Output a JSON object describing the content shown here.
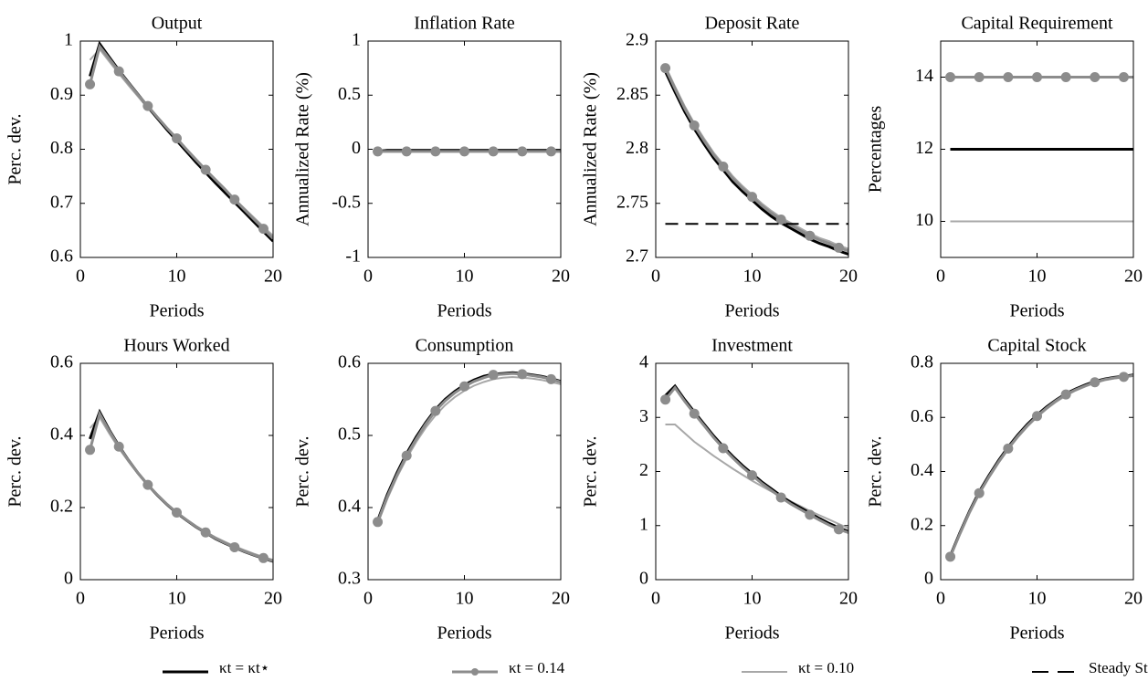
{
  "chart_data": [
    {
      "type": "line",
      "title": "Output",
      "ylabel": "Perc. dev.",
      "xlabel": "Periods",
      "x": [
        1,
        2,
        3,
        4,
        5,
        6,
        7,
        8,
        9,
        10,
        11,
        12,
        13,
        14,
        15,
        16,
        17,
        18,
        19,
        20
      ],
      "xlim": [
        0,
        20
      ],
      "xticks": [
        0,
        10,
        20
      ],
      "ylim": [
        0.6,
        1
      ],
      "yticks": [
        0.6,
        0.7,
        0.8,
        0.9,
        1
      ],
      "series": [
        {
          "values": [
            0.935,
            0.995,
            0.97,
            0.946,
            0.923,
            0.901,
            0.879,
            0.857,
            0.836,
            0.816,
            0.796,
            0.776,
            0.757,
            0.738,
            0.72,
            0.702,
            0.684,
            0.666,
            0.648,
            0.63
          ]
        },
        {
          "values": [
            0.92,
            0.99,
            0.967,
            0.944,
            0.922,
            0.9,
            0.88,
            0.859,
            0.839,
            0.82,
            0.8,
            0.781,
            0.762,
            0.744,
            0.726,
            0.707,
            0.689,
            0.671,
            0.653,
            0.635
          ]
        },
        {
          "values": [
            0.965,
            0.985,
            0.962,
            0.94,
            0.918,
            0.897,
            0.876,
            0.856,
            0.836,
            0.817,
            0.798,
            0.779,
            0.761,
            0.743,
            0.725,
            0.708,
            0.691,
            0.674,
            0.657,
            0.64
          ]
        }
      ]
    },
    {
      "type": "line",
      "title": "Inflation Rate",
      "ylabel": "Annualized Rate (%)",
      "xlabel": "Periods",
      "x": [
        1,
        2,
        3,
        4,
        5,
        6,
        7,
        8,
        9,
        10,
        11,
        12,
        13,
        14,
        15,
        16,
        17,
        18,
        19,
        20
      ],
      "xlim": [
        0,
        20
      ],
      "xticks": [
        0,
        10,
        20
      ],
      "ylim": [
        -1,
        1
      ],
      "yticks": [
        -1,
        -0.5,
        0,
        0.5,
        1
      ],
      "series": [
        {
          "values": [
            -0.02,
            -0.01,
            -0.01,
            -0.01,
            -0.01,
            -0.01,
            -0.01,
            -0.01,
            -0.01,
            -0.01,
            -0.01,
            -0.01,
            -0.01,
            -0.01,
            -0.01,
            -0.01,
            -0.01,
            -0.01,
            -0.01,
            -0.01
          ]
        },
        {
          "values": [
            -0.02,
            -0.02,
            -0.02,
            -0.02,
            -0.02,
            -0.02,
            -0.02,
            -0.02,
            -0.02,
            -0.02,
            -0.02,
            -0.02,
            -0.02,
            -0.02,
            -0.02,
            -0.02,
            -0.02,
            -0.02,
            -0.02,
            -0.02
          ]
        },
        {
          "values": [
            -0.01,
            -0.005,
            -0.005,
            -0.005,
            -0.005,
            -0.005,
            -0.005,
            -0.005,
            -0.005,
            -0.005,
            -0.005,
            -0.005,
            -0.005,
            -0.005,
            -0.005,
            -0.005,
            -0.005,
            -0.005,
            -0.005,
            -0.005
          ]
        }
      ]
    },
    {
      "type": "line",
      "title": "Deposit Rate",
      "ylabel": "Annualized Rate (%)",
      "xlabel": "Periods",
      "x": [
        1,
        2,
        3,
        4,
        5,
        6,
        7,
        8,
        9,
        10,
        11,
        12,
        13,
        14,
        15,
        16,
        17,
        18,
        19,
        20
      ],
      "xlim": [
        0,
        20
      ],
      "xticks": [
        0,
        10,
        20
      ],
      "ylim": [
        2.7,
        2.9
      ],
      "yticks": [
        2.7,
        2.75,
        2.8,
        2.85,
        2.9
      ],
      "series": [
        {
          "values": [
            2.872,
            2.853,
            2.835,
            2.819,
            2.805,
            2.792,
            2.781,
            2.77,
            2.761,
            2.753,
            2.745,
            2.738,
            2.732,
            2.727,
            2.722,
            2.717,
            2.713,
            2.71,
            2.706,
            2.703
          ]
        },
        {
          "values": [
            2.875,
            2.856,
            2.838,
            2.822,
            2.808,
            2.795,
            2.784,
            2.773,
            2.764,
            2.756,
            2.748,
            2.741,
            2.735,
            2.73,
            2.725,
            2.72,
            2.716,
            2.713,
            2.709,
            2.706
          ]
        },
        {
          "values": [
            2.877,
            2.858,
            2.84,
            2.824,
            2.81,
            2.797,
            2.786,
            2.775,
            2.766,
            2.758,
            2.75,
            2.743,
            2.737,
            2.732,
            2.727,
            2.722,
            2.718,
            2.715,
            2.711,
            2.708
          ]
        },
        {
          "values": [
            2.731,
            2.731,
            2.731,
            2.731,
            2.731,
            2.731,
            2.731,
            2.731,
            2.731,
            2.731,
            2.731,
            2.731,
            2.731,
            2.731,
            2.731,
            2.731,
            2.731,
            2.731,
            2.731,
            2.731
          ]
        }
      ]
    },
    {
      "type": "line",
      "title": "Capital Requirement",
      "ylabel": "Percentages",
      "xlabel": "Periods",
      "x": [
        1,
        2,
        3,
        4,
        5,
        6,
        7,
        8,
        9,
        10,
        11,
        12,
        13,
        14,
        15,
        16,
        17,
        18,
        19,
        20
      ],
      "xlim": [
        0,
        20
      ],
      "xticks": [
        0,
        10,
        20
      ],
      "ylim": [
        9,
        15
      ],
      "yticks": [
        10,
        12,
        14
      ],
      "series": [
        {
          "values": [
            12,
            12,
            12,
            12,
            12,
            12,
            12,
            12,
            12,
            12,
            12,
            12,
            12,
            12,
            12,
            12,
            12,
            12,
            12,
            12
          ]
        },
        {
          "values": [
            14,
            14,
            14,
            14,
            14,
            14,
            14,
            14,
            14,
            14,
            14,
            14,
            14,
            14,
            14,
            14,
            14,
            14,
            14,
            14
          ]
        },
        {
          "values": [
            10,
            10,
            10,
            10,
            10,
            10,
            10,
            10,
            10,
            10,
            10,
            10,
            10,
            10,
            10,
            10,
            10,
            10,
            10,
            10
          ]
        }
      ]
    },
    {
      "type": "line",
      "title": "Hours Worked",
      "ylabel": "Perc. dev.",
      "xlabel": "Periods",
      "x": [
        1,
        2,
        3,
        4,
        5,
        6,
        7,
        8,
        9,
        10,
        11,
        12,
        13,
        14,
        15,
        16,
        17,
        18,
        19,
        20
      ],
      "xlim": [
        0,
        20
      ],
      "xticks": [
        0,
        10,
        20
      ],
      "ylim": [
        0,
        0.6
      ],
      "yticks": [
        0,
        0.2,
        0.4,
        0.6
      ],
      "series": [
        {
          "values": [
            0.39,
            0.465,
            0.415,
            0.371,
            0.331,
            0.295,
            0.263,
            0.234,
            0.208,
            0.185,
            0.165,
            0.146,
            0.13,
            0.114,
            0.101,
            0.089,
            0.078,
            0.068,
            0.059,
            0.051
          ]
        },
        {
          "values": [
            0.36,
            0.46,
            0.412,
            0.369,
            0.33,
            0.295,
            0.263,
            0.235,
            0.209,
            0.186,
            0.166,
            0.147,
            0.131,
            0.115,
            0.102,
            0.09,
            0.079,
            0.069,
            0.06,
            0.052
          ]
        },
        {
          "values": [
            0.42,
            0.45,
            0.405,
            0.364,
            0.327,
            0.293,
            0.262,
            0.234,
            0.209,
            0.187,
            0.167,
            0.149,
            0.133,
            0.118,
            0.105,
            0.093,
            0.082,
            0.072,
            0.063,
            0.055
          ]
        }
      ]
    },
    {
      "type": "line",
      "title": "Consumption",
      "ylabel": "Perc. dev.",
      "xlabel": "Periods",
      "x": [
        1,
        2,
        3,
        4,
        5,
        6,
        7,
        8,
        9,
        10,
        11,
        12,
        13,
        14,
        15,
        16,
        17,
        18,
        19,
        20
      ],
      "xlim": [
        0,
        20
      ],
      "xticks": [
        0,
        10,
        20
      ],
      "ylim": [
        0.3,
        0.6
      ],
      "yticks": [
        0.3,
        0.4,
        0.5,
        0.6
      ],
      "series": [
        {
          "values": [
            0.382,
            0.418,
            0.448,
            0.475,
            0.498,
            0.518,
            0.536,
            0.55,
            0.561,
            0.57,
            0.577,
            0.582,
            0.585,
            0.586,
            0.587,
            0.586,
            0.584,
            0.582,
            0.579,
            0.575
          ]
        },
        {
          "values": [
            0.38,
            0.415,
            0.445,
            0.472,
            0.495,
            0.516,
            0.534,
            0.548,
            0.559,
            0.568,
            0.575,
            0.58,
            0.584,
            0.585,
            0.586,
            0.585,
            0.583,
            0.581,
            0.578,
            0.574
          ]
        },
        {
          "values": [
            0.378,
            0.412,
            0.442,
            0.468,
            0.491,
            0.511,
            0.528,
            0.542,
            0.553,
            0.562,
            0.569,
            0.574,
            0.578,
            0.58,
            0.581,
            0.58,
            0.579,
            0.577,
            0.574,
            0.571
          ]
        }
      ]
    },
    {
      "type": "line",
      "title": "Investment",
      "ylabel": "Perc. dev.",
      "xlabel": "Periods",
      "x": [
        1,
        2,
        3,
        4,
        5,
        6,
        7,
        8,
        9,
        10,
        11,
        12,
        13,
        14,
        15,
        16,
        17,
        18,
        19,
        20
      ],
      "xlim": [
        0,
        20
      ],
      "xticks": [
        0,
        10,
        20
      ],
      "ylim": [
        0,
        4
      ],
      "yticks": [
        0,
        1,
        2,
        3,
        4
      ],
      "series": [
        {
          "values": [
            3.4,
            3.58,
            3.33,
            3.1,
            2.88,
            2.66,
            2.46,
            2.28,
            2.11,
            1.96,
            1.81,
            1.68,
            1.55,
            1.43,
            1.33,
            1.23,
            1.13,
            1.04,
            0.96,
            0.89
          ]
        },
        {
          "values": [
            3.33,
            3.55,
            3.3,
            3.07,
            2.85,
            2.63,
            2.43,
            2.25,
            2.08,
            1.93,
            1.78,
            1.65,
            1.52,
            1.4,
            1.3,
            1.2,
            1.1,
            1.01,
            0.93,
            0.87
          ]
        },
        {
          "values": [
            2.87,
            2.87,
            2.71,
            2.55,
            2.42,
            2.29,
            2.17,
            2.05,
            1.94,
            1.83,
            1.73,
            1.63,
            1.54,
            1.45,
            1.36,
            1.27,
            1.19,
            1.11,
            1.03,
            0.95
          ]
        }
      ]
    },
    {
      "type": "line",
      "title": "Capital Stock",
      "ylabel": "Perc. dev.",
      "xlabel": "Periods",
      "x": [
        1,
        2,
        3,
        4,
        5,
        6,
        7,
        8,
        9,
        10,
        11,
        12,
        13,
        14,
        15,
        16,
        17,
        18,
        19,
        20
      ],
      "xlim": [
        0,
        20
      ],
      "xticks": [
        0,
        10,
        20
      ],
      "ylim": [
        0,
        0.8
      ],
      "yticks": [
        0,
        0.2,
        0.4,
        0.6,
        0.8
      ],
      "series": [
        {
          "values": [
            0.088,
            0.174,
            0.254,
            0.325,
            0.385,
            0.44,
            0.49,
            0.535,
            0.575,
            0.609,
            0.639,
            0.665,
            0.688,
            0.705,
            0.72,
            0.733,
            0.742,
            0.748,
            0.752,
            0.757
          ]
        },
        {
          "values": [
            0.085,
            0.17,
            0.25,
            0.32,
            0.38,
            0.435,
            0.485,
            0.53,
            0.57,
            0.605,
            0.635,
            0.662,
            0.685,
            0.702,
            0.717,
            0.73,
            0.74,
            0.746,
            0.75,
            0.755
          ]
        },
        {
          "values": [
            0.083,
            0.167,
            0.246,
            0.316,
            0.376,
            0.431,
            0.481,
            0.526,
            0.566,
            0.601,
            0.631,
            0.658,
            0.681,
            0.699,
            0.714,
            0.727,
            0.737,
            0.744,
            0.748,
            0.753
          ]
        }
      ]
    }
  ],
  "legend": [
    {
      "name": "κt = κt⋆",
      "color": "#000000",
      "style": "solid"
    },
    {
      "name": "κt = 0.14",
      "color": "#8c8c8c",
      "style": "marker"
    },
    {
      "name": "κt = 0.10",
      "color": "#a8a8a8",
      "style": "thin"
    },
    {
      "name": "Steady State",
      "color": "#000000",
      "style": "dashed"
    }
  ]
}
